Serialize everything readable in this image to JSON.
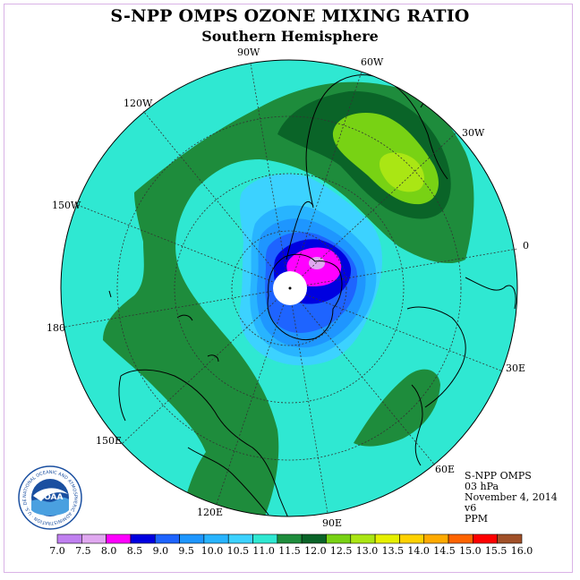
{
  "title": "S-NPP OMPS OZONE MIXING RATIO",
  "subtitle": "Southern Hemisphere",
  "meridian_labels": [
    "90W",
    "60W",
    "30W",
    "0",
    "30E",
    "60E",
    "90E",
    "120E",
    "150E",
    "180",
    "150W",
    "120W"
  ],
  "info": {
    "instrument": "S-NPP OMPS",
    "level": "03 hPa",
    "date": "November 4, 2014",
    "version": "v6",
    "units": "PPM"
  },
  "logo": {
    "center_text": "NOAA",
    "ring_text": "NATIONAL OCEANIC AND ATMOSPHERIC ADMINISTRATION · U.S. DEPARTMENT OF COMMERCE"
  },
  "colorbar": {
    "ticks": [
      "7.0",
      "7.5",
      "8.0",
      "8.5",
      "9.0",
      "9.5",
      "10.0",
      "10.5",
      "11.0",
      "11.5",
      "12.0",
      "12.5",
      "13.0",
      "13.5",
      "14.0",
      "14.5",
      "15.0",
      "15.5",
      "16.0"
    ],
    "colors": [
      "#c080f0",
      "#e0a8f0",
      "#ff00ff",
      "#0000e0",
      "#1e64ff",
      "#1e96ff",
      "#28b4ff",
      "#3cd2ff",
      "#2fe8d2",
      "#1e8c3c",
      "#0a6428",
      "#78d214",
      "#aae614",
      "#e6f000",
      "#ffd200",
      "#ffaa00",
      "#ff6400",
      "#ff0000",
      "#a05028"
    ]
  }
}
